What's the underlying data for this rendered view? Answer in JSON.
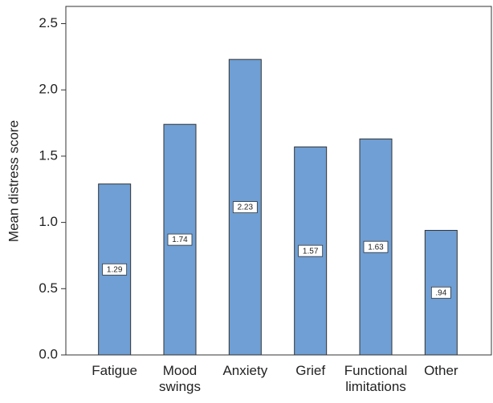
{
  "chart_data": {
    "type": "bar",
    "y_label": "Mean distress score",
    "categories": [
      "Fatigue",
      "Mood swings",
      "Anxiety",
      "Grief",
      "Functional limitations",
      "Other"
    ],
    "values": [
      1.29,
      1.74,
      2.23,
      1.57,
      1.63,
      0.94
    ],
    "value_labels": [
      "1.29",
      "1.74",
      "2.23",
      "1.57",
      "1.63",
      ".94"
    ],
    "color": "#6f9fd4",
    "ylim": [
      0,
      2.63
    ],
    "yticks": [
      {
        "value": 0,
        "label": "0.0"
      },
      {
        "value": 0.5,
        "label": "0.5"
      },
      {
        "value": 1,
        "label": "1.0"
      },
      {
        "value": 1.5,
        "label": "1.5"
      },
      {
        "value": 2,
        "label": "2.0"
      },
      {
        "value": 2.5,
        "label": "2.5"
      }
    ]
  }
}
